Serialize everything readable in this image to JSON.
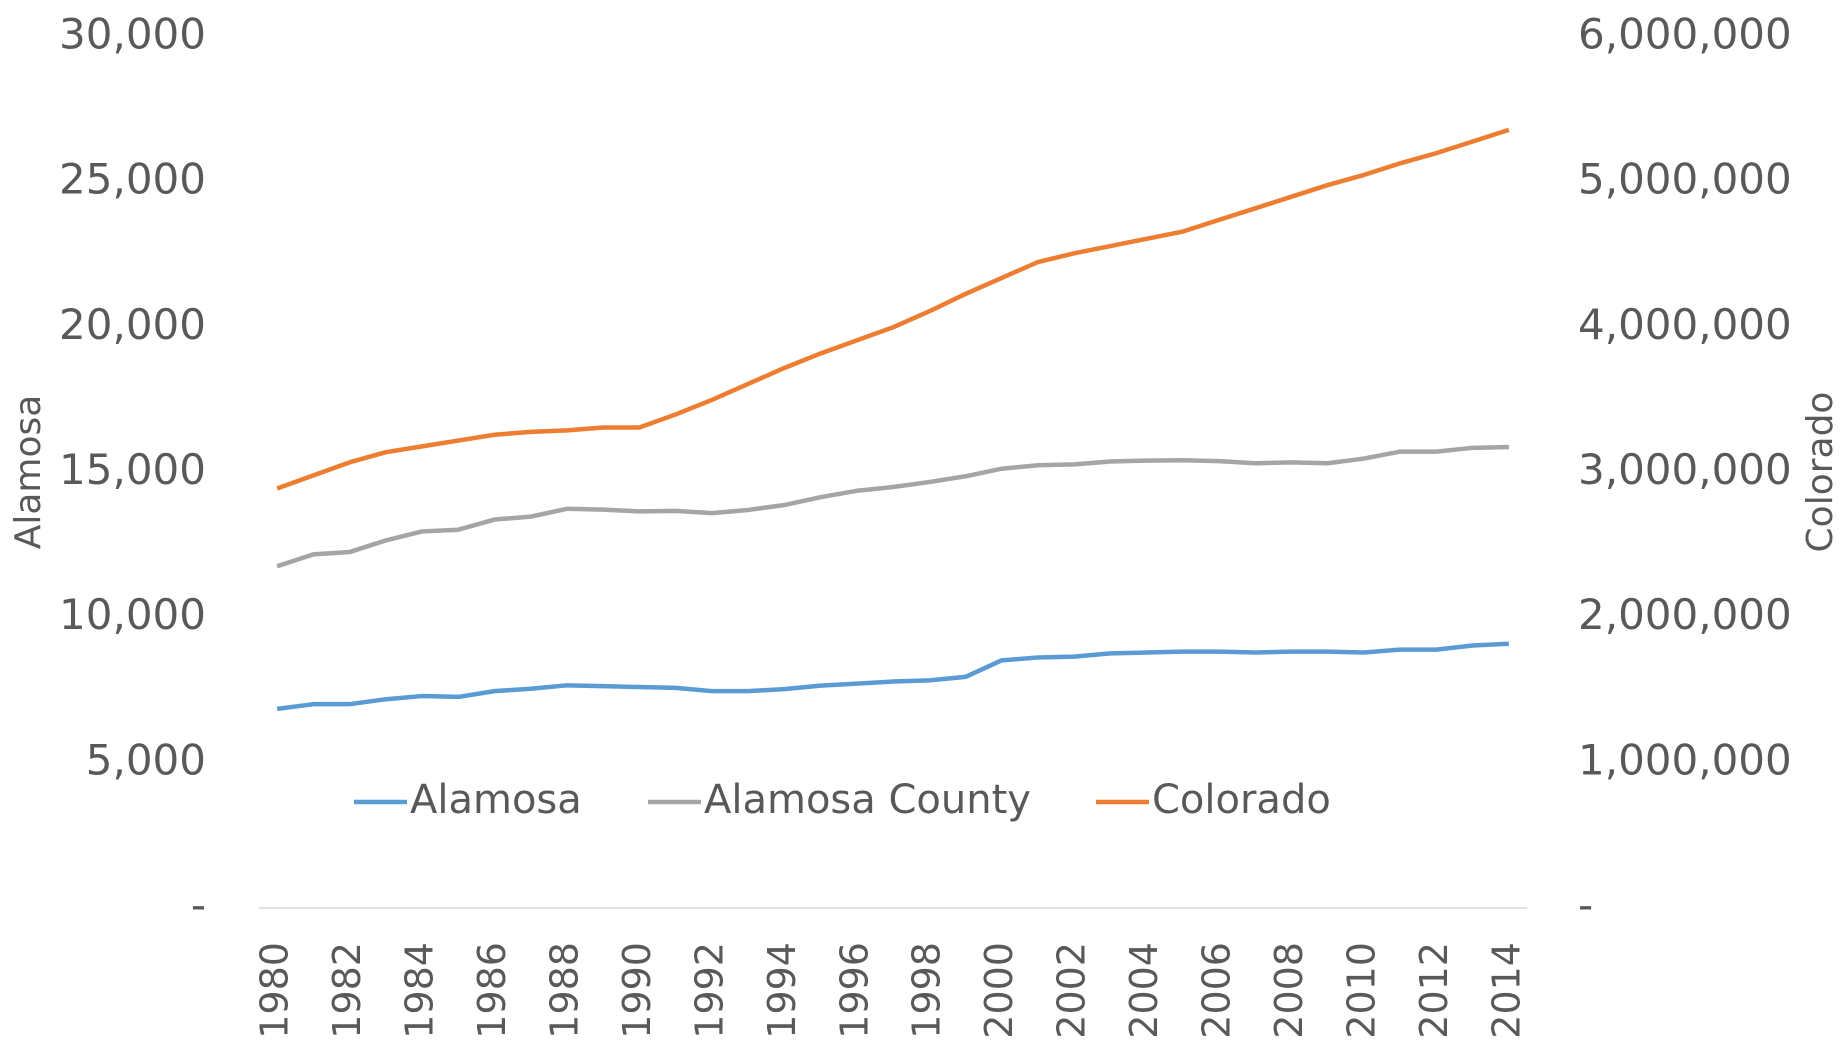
{
  "chart_data": {
    "type": "line",
    "categories": [
      "1980",
      null,
      "1982",
      null,
      "1984",
      null,
      "1986",
      null,
      "1988",
      null,
      "1990",
      null,
      "1992",
      null,
      "1994",
      null,
      "1996",
      null,
      "1998",
      null,
      "2000",
      null,
      "2002",
      null,
      "2004",
      null,
      "2006",
      null,
      "2008",
      null,
      "2010",
      null,
      "2012",
      null,
      "2014"
    ],
    "series": [
      {
        "name": "Alamosa",
        "color": "#5b9bd5",
        "values": [
          6860,
          7020,
          7020,
          7190,
          7300,
          7270,
          7470,
          7550,
          7670,
          7640,
          7610,
          7580,
          7470,
          7470,
          7540,
          7660,
          7730,
          7800,
          7840,
          7960,
          8530,
          8630,
          8660,
          8770,
          8800,
          8830,
          8830,
          8800,
          8830,
          8830,
          8800,
          8900,
          8900,
          9040,
          9100
        ]
      },
      {
        "name": "Alamosa County",
        "color": "#a5a5a5",
        "values": [
          11770,
          12180,
          12260,
          12660,
          12970,
          13030,
          13380,
          13480,
          13750,
          13720,
          13660,
          13680,
          13600,
          13710,
          13880,
          14150,
          14370,
          14500,
          14670,
          14870,
          15130,
          15250,
          15280,
          15380,
          15410,
          15420,
          15390,
          15320,
          15350,
          15320,
          15480,
          15720,
          15720,
          15850,
          15880
        ]
      },
      {
        "name": "Colorado",
        "color": "#ed7d31",
        "axis": "y2",
        "values": [
          2890000,
          2980000,
          3070000,
          3140000,
          3180000,
          3220000,
          3260000,
          3280000,
          3290000,
          3310000,
          3310000,
          3400000,
          3500000,
          3610000,
          3720000,
          3820000,
          3910000,
          4000000,
          4110000,
          4230000,
          4340000,
          4450000,
          4510000,
          4560000,
          4610000,
          4660000,
          4740000,
          4820000,
          4900000,
          4980000,
          5050000,
          5130000,
          5200000,
          5280000,
          5360000
        ]
      }
    ],
    "ylabel": "Alamosa",
    "y2label": "Colorado",
    "ylim": [
      0,
      30000
    ],
    "yticks": [
      {
        "value": 0,
        "label": "-"
      },
      {
        "value": 5000,
        "label": "5,000"
      },
      {
        "value": 10000,
        "label": "10,000"
      },
      {
        "value": 15000,
        "label": "15,000"
      },
      {
        "value": 20000,
        "label": "20,000"
      },
      {
        "value": 25000,
        "label": "25,000"
      },
      {
        "value": 30000,
        "label": "30,000"
      }
    ],
    "y2lim": [
      0,
      6000000
    ],
    "y2ticks": [
      {
        "value": 0,
        "label": "-"
      },
      {
        "value": 1000000,
        "label": "1,000,000"
      },
      {
        "value": 2000000,
        "label": "2,000,000"
      },
      {
        "value": 3000000,
        "label": "3,000,000"
      },
      {
        "value": 4000000,
        "label": "4,000,000"
      },
      {
        "value": 5000000,
        "label": "5,000,000"
      },
      {
        "value": 6000000,
        "label": "6,000,000"
      }
    ],
    "grid": false,
    "legend": "bottom"
  }
}
